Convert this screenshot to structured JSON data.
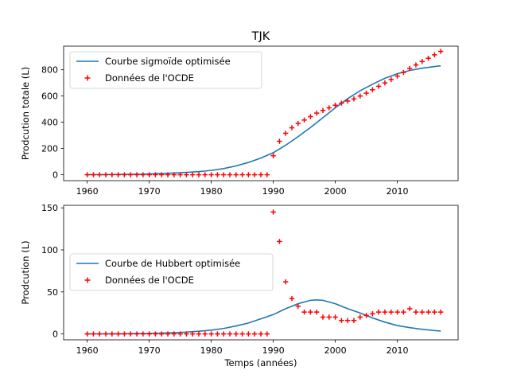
{
  "figure_title": "TJK",
  "colors": {
    "model": "#1f77b4",
    "data": "#ff0000"
  },
  "chart_data": [
    {
      "type": "line",
      "title": "",
      "xlabel": "",
      "ylabel": "Prodcution totale (L)",
      "xlim": [
        1956.2,
        2019.8
      ],
      "ylim": [
        -45,
        980
      ],
      "xticks": [
        1960,
        1970,
        1980,
        1990,
        2000,
        2010
      ],
      "yticks": [
        0,
        200,
        400,
        600,
        800
      ],
      "legend_position": "upper-left",
      "grid": false,
      "series": [
        {
          "name": "Courbe sigmoïde optimisée",
          "kind": "line",
          "x": [
            1960,
            1962,
            1964,
            1966,
            1968,
            1970,
            1972,
            1974,
            1976,
            1978,
            1980,
            1982,
            1984,
            1986,
            1988,
            1990,
            1992,
            1994,
            1996,
            1998,
            2000,
            2002,
            2004,
            2006,
            2008,
            2010,
            2012,
            2014,
            2016,
            2017
          ],
          "y": [
            1,
            1,
            2,
            3,
            4,
            6,
            9,
            13,
            18,
            24,
            33,
            47,
            67,
            94,
            127,
            168,
            225,
            290,
            360,
            435,
            510,
            580,
            640,
            690,
            735,
            770,
            795,
            812,
            825,
            830
          ]
        },
        {
          "name": "Données de l'OCDE",
          "kind": "scatter",
          "x": [
            1960,
            1961,
            1962,
            1963,
            1964,
            1965,
            1966,
            1967,
            1968,
            1969,
            1970,
            1971,
            1972,
            1973,
            1974,
            1975,
            1976,
            1977,
            1978,
            1979,
            1980,
            1981,
            1982,
            1983,
            1984,
            1985,
            1986,
            1987,
            1988,
            1989,
            1990,
            1991,
            1992,
            1993,
            1994,
            1995,
            1996,
            1997,
            1998,
            1999,
            2000,
            2001,
            2002,
            2003,
            2004,
            2005,
            2006,
            2007,
            2008,
            2009,
            2010,
            2011,
            2012,
            2013,
            2014,
            2015,
            2016,
            2017
          ],
          "y": [
            0,
            0,
            0,
            0,
            0,
            0,
            0,
            0,
            0,
            0,
            0,
            0,
            0,
            0,
            0,
            0,
            0,
            0,
            0,
            0,
            0,
            0,
            0,
            0,
            0,
            0,
            0,
            0,
            0,
            0,
            145,
            255,
            316,
            358,
            391,
            417,
            443,
            470,
            490,
            510,
            530,
            546,
            562,
            578,
            600,
            622,
            648,
            674,
            700,
            726,
            752,
            780,
            810,
            837,
            863,
            888,
            914,
            940
          ]
        }
      ]
    },
    {
      "type": "line",
      "title": "",
      "xlabel": "Temps (années)",
      "ylabel": "Prodcution (L)",
      "xlim": [
        1956.2,
        2019.8
      ],
      "ylim": [
        -7,
        153
      ],
      "xticks": [
        1960,
        1970,
        1980,
        1990,
        2000,
        2010
      ],
      "yticks": [
        0,
        50,
        100,
        150
      ],
      "legend_position": "center-left",
      "grid": false,
      "series": [
        {
          "name": "Courbe de Hubbert optimisée",
          "kind": "line",
          "x": [
            1960,
            1962,
            1964,
            1966,
            1968,
            1970,
            1972,
            1974,
            1976,
            1978,
            1980,
            1982,
            1984,
            1986,
            1988,
            1990,
            1992,
            1994,
            1996,
            1997,
            1998,
            2000,
            2002,
            2004,
            2006,
            2008,
            2010,
            2012,
            2014,
            2016,
            2017
          ],
          "y": [
            0.1,
            0.1,
            0.2,
            0.3,
            0.5,
            0.7,
            1,
            1.5,
            2.2,
            3.2,
            4.5,
            6.5,
            9.5,
            13,
            18,
            23,
            30,
            36,
            40,
            40.5,
            40,
            36,
            30,
            25,
            19,
            14,
            10,
            7.5,
            5.5,
            4,
            3.5
          ]
        },
        {
          "name": "Données de l'OCDE",
          "kind": "scatter",
          "x": [
            1960,
            1961,
            1962,
            1963,
            1964,
            1965,
            1966,
            1967,
            1968,
            1969,
            1970,
            1971,
            1972,
            1973,
            1974,
            1975,
            1976,
            1977,
            1978,
            1979,
            1980,
            1981,
            1982,
            1983,
            1984,
            1985,
            1986,
            1987,
            1988,
            1989,
            1990,
            1991,
            1992,
            1993,
            1994,
            1995,
            1996,
            1997,
            1998,
            1999,
            2000,
            2001,
            2002,
            2003,
            2004,
            2005,
            2006,
            2007,
            2008,
            2009,
            2010,
            2011,
            2012,
            2013,
            2014,
            2015,
            2016,
            2017
          ],
          "y": [
            0,
            0,
            0,
            0,
            0,
            0,
            0,
            0,
            0,
            0,
            0,
            0,
            0,
            0,
            0,
            0,
            0,
            0,
            0,
            0,
            0,
            0,
            0,
            0,
            0,
            0,
            0,
            0,
            0,
            0,
            145,
            110,
            62,
            42,
            33,
            26,
            26,
            26,
            20,
            20,
            20,
            16,
            16,
            16,
            20,
            22,
            24,
            26,
            26,
            26,
            26,
            26,
            30,
            26,
            26,
            26,
            26,
            26
          ]
        }
      ]
    }
  ]
}
